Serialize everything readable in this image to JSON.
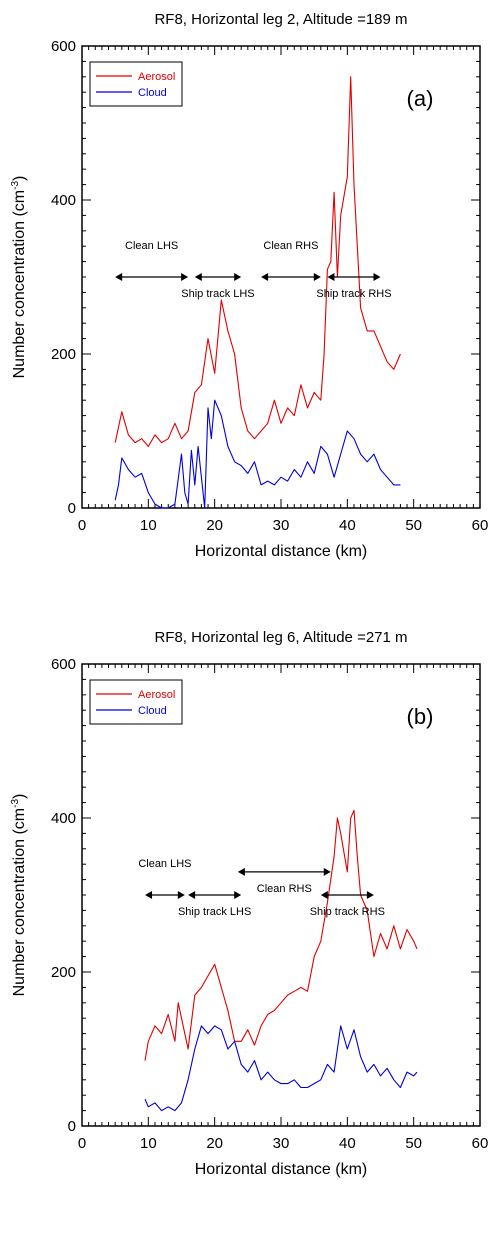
{
  "chart_data": [
    {
      "type": "line",
      "title": "RF8, Horizontal leg 2,  Altitude =189 m",
      "panel_label": "(a)",
      "xlabel": "Horizontal distance (km)",
      "ylabel_main": "Number concentration (cm",
      "ylabel_sup": "-3",
      "ylabel_close": ")",
      "xlim": [
        0,
        60
      ],
      "ylim": [
        0,
        600
      ],
      "xticks": [
        "0",
        "10",
        "20",
        "30",
        "40",
        "50",
        "60"
      ],
      "yticks": [
        "0",
        "200",
        "400",
        "600"
      ],
      "legend": "top-left",
      "colors": {
        "aerosol": "#e00000",
        "cloud": "#0000dd"
      },
      "annotations": [
        {
          "label": "Clean LHS",
          "x_start": 5,
          "x_end": 16,
          "y": 300,
          "label_pos": "above"
        },
        {
          "label": "Ship track LHS",
          "x_start": 17,
          "x_end": 24,
          "y": 300,
          "label_pos": "below"
        },
        {
          "label": "Clean RHS",
          "x_start": 27,
          "x_end": 36,
          "y": 300,
          "label_pos": "above"
        },
        {
          "label": "Ship track RHS",
          "x_start": 37,
          "x_end": 45,
          "y": 300,
          "label_pos": "below"
        }
      ],
      "series": [
        {
          "name": "Aerosol",
          "x": [
            5,
            6,
            7,
            8,
            9,
            10,
            11,
            12,
            13,
            14,
            15,
            16,
            17,
            18,
            19,
            20,
            21,
            22,
            23,
            24,
            25,
            26,
            27,
            28,
            29,
            30,
            31,
            32,
            33,
            34,
            35,
            36,
            36.5,
            37,
            37.5,
            38,
            38.5,
            39,
            40,
            40.5,
            41,
            42,
            43,
            44,
            45,
            46,
            47,
            48
          ],
          "values": [
            85,
            125,
            95,
            85,
            90,
            80,
            95,
            85,
            90,
            110,
            90,
            100,
            150,
            160,
            220,
            175,
            270,
            230,
            200,
            130,
            100,
            90,
            100,
            110,
            140,
            110,
            130,
            120,
            160,
            130,
            150,
            140,
            200,
            310,
            320,
            410,
            300,
            380,
            430,
            560,
            420,
            260,
            230,
            230,
            210,
            190,
            180,
            200
          ]
        },
        {
          "name": "Cloud",
          "x": [
            5,
            5.5,
            6,
            7,
            8,
            9,
            10,
            11,
            12,
            13,
            14,
            15,
            15.5,
            16,
            16.5,
            17,
            17.5,
            18,
            18.5,
            19,
            19.5,
            20,
            21,
            22,
            23,
            24,
            25,
            26,
            27,
            28,
            29,
            30,
            31,
            32,
            33,
            34,
            35,
            36,
            37,
            38,
            39,
            40,
            41,
            42,
            43,
            44,
            45,
            46,
            47,
            48
          ],
          "values": [
            10,
            30,
            65,
            50,
            40,
            45,
            20,
            5,
            0,
            0,
            5,
            70,
            20,
            5,
            75,
            30,
            80,
            40,
            0,
            130,
            90,
            140,
            120,
            80,
            60,
            55,
            45,
            60,
            30,
            35,
            30,
            40,
            35,
            50,
            40,
            60,
            45,
            80,
            70,
            40,
            70,
            100,
            90,
            70,
            60,
            70,
            50,
            40,
            30,
            30
          ]
        }
      ]
    },
    {
      "type": "line",
      "title": "RF8, Horizontal leg 6,  Altitude =271 m",
      "panel_label": "(b)",
      "xlabel": "Horizontal distance (km)",
      "ylabel_main": "Number concentration (cm",
      "ylabel_sup": "-3",
      "ylabel_close": ")",
      "xlim": [
        0,
        60
      ],
      "ylim": [
        0,
        600
      ],
      "xticks": [
        "0",
        "10",
        "20",
        "30",
        "40",
        "50",
        "60"
      ],
      "yticks": [
        "0",
        "200",
        "400",
        "600"
      ],
      "legend": "top-left",
      "colors": {
        "aerosol": "#e00000",
        "cloud": "#0000dd"
      },
      "annotations": [
        {
          "label": "Clean LHS",
          "x_start": 9.5,
          "x_end": 15.5,
          "y": 300,
          "label_pos": "above"
        },
        {
          "label": "Ship track LHS",
          "x_start": 16,
          "x_end": 24,
          "y": 300,
          "label_pos": "below"
        },
        {
          "label": "Clean RHS",
          "x_start": 23.5,
          "x_end": 37.5,
          "y": 330,
          "label_pos": "below"
        },
        {
          "label": "Ship track RHS",
          "x_start": 36,
          "x_end": 44,
          "y": 300,
          "label_pos": "below"
        }
      ],
      "series": [
        {
          "name": "Aerosol",
          "x": [
            9.5,
            10,
            11,
            12,
            13,
            14,
            14.5,
            15,
            16,
            17,
            18,
            19,
            20,
            21,
            22,
            23,
            24,
            25,
            26,
            27,
            28,
            29,
            30,
            31,
            32,
            33,
            34,
            35,
            36,
            37,
            38,
            38.5,
            39,
            40,
            40.5,
            41,
            41.5,
            42,
            43,
            44,
            45,
            46,
            47,
            48,
            49,
            50,
            50.5
          ],
          "values": [
            85,
            110,
            130,
            120,
            145,
            110,
            160,
            140,
            100,
            170,
            180,
            195,
            210,
            180,
            150,
            110,
            110,
            125,
            105,
            130,
            145,
            150,
            160,
            170,
            175,
            180,
            175,
            220,
            240,
            290,
            350,
            400,
            380,
            330,
            400,
            410,
            350,
            300,
            280,
            220,
            250,
            230,
            260,
            230,
            255,
            240,
            230
          ]
        },
        {
          "name": "Cloud",
          "x": [
            9.5,
            10,
            11,
            12,
            13,
            14,
            15,
            16,
            17,
            18,
            19,
            20,
            21,
            22,
            23,
            24,
            25,
            26,
            27,
            28,
            29,
            30,
            31,
            32,
            33,
            34,
            35,
            36,
            37,
            38,
            39,
            40,
            41,
            42,
            43,
            44,
            45,
            46,
            47,
            48,
            49,
            50,
            50.5
          ],
          "values": [
            35,
            25,
            30,
            20,
            25,
            20,
            30,
            60,
            100,
            130,
            120,
            130,
            125,
            100,
            110,
            80,
            70,
            85,
            60,
            70,
            60,
            55,
            55,
            60,
            50,
            50,
            55,
            60,
            80,
            70,
            130,
            100,
            125,
            90,
            70,
            80,
            65,
            75,
            60,
            50,
            70,
            65,
            70
          ]
        }
      ]
    }
  ]
}
